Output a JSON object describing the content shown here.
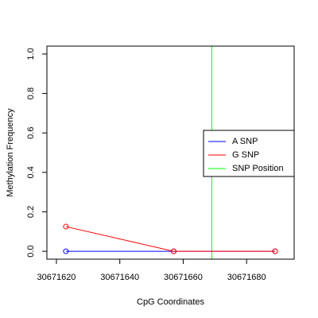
{
  "chart_data": {
    "type": "line",
    "title": "",
    "xlabel": "CpG Coordinates",
    "ylabel": "Methylation Frequency",
    "xlim": [
      30671617,
      30671695
    ],
    "ylim": [
      -0.04,
      1.04
    ],
    "x_ticks": [
      30671620,
      30671640,
      30671660,
      30671680
    ],
    "x_tick_labels": [
      "30671620",
      "30671640",
      "30671660",
      "30671680"
    ],
    "y_ticks": [
      0,
      0.2,
      0.4,
      0.6,
      0.8,
      1
    ],
    "y_tick_labels": [
      "0.0",
      "0.2",
      "0.4",
      "0.6",
      "0.8",
      "1.0"
    ],
    "grid": false,
    "legend_position": "right",
    "series": [
      {
        "name": "A SNP",
        "color": "#0000ff",
        "x": [
          30671623,
          30671657,
          30671689
        ],
        "y": [
          0,
          0,
          0
        ]
      },
      {
        "name": "G SNP",
        "color": "#ff0000",
        "x": [
          30671623,
          30671657,
          30671689
        ],
        "y": [
          0.125,
          0,
          0
        ]
      }
    ],
    "snp_position": {
      "name": "SNP Position",
      "color": "#00ff00",
      "x": 30671669
    },
    "legend": [
      {
        "name": "A SNP",
        "color": "#0000ff"
      },
      {
        "name": "G SNP",
        "color": "#ff0000"
      },
      {
        "name": "SNP Position",
        "color": "#00ff00"
      }
    ]
  }
}
